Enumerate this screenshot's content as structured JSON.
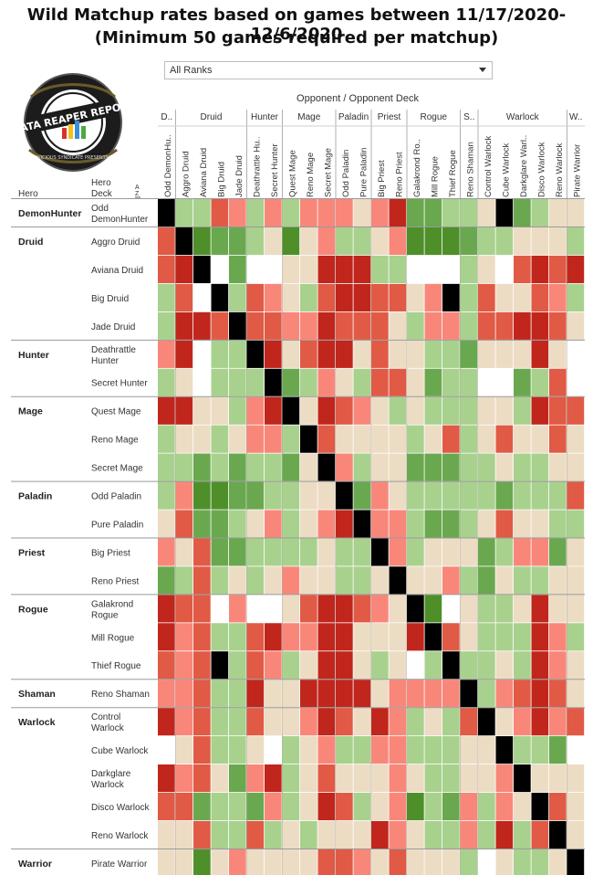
{
  "titles": {
    "line1": "Wild Matchup rates based on games between 11/17/2020-12/6/2020",
    "line2": "(Minimum 50 games required per matchup)"
  },
  "filter": {
    "selected": "All Ranks"
  },
  "logo": {
    "text": "DATA REAPER REPORT",
    "subtext": "VICIOUS SYNDICATE PRESENTS"
  },
  "colors": {
    "strong_fav": "#4f8f2a",
    "fav": "#6aa84f",
    "slight_fav": "#a9d18e",
    "even": "#ecdcc3",
    "slight_unfav": "#f8877a",
    "unfav": "#e05a45",
    "strong_unfav": "#c0261b",
    "mirror": "#000000",
    "no_data": "#ffffff"
  },
  "chart_data": {
    "type": "heatmap",
    "header": {
      "opponent_label": "Opponent",
      "separator": "/",
      "deck_label": "Opponent Deck",
      "hero_label": "Hero",
      "hero_deck_label": "Hero Deck",
      "sort_icon": "A Z"
    },
    "opponent_classes": [
      {
        "name": "D..",
        "count": 1
      },
      {
        "name": "Druid",
        "count": 4
      },
      {
        "name": "Hunter",
        "count": 2
      },
      {
        "name": "Mage",
        "count": 3
      },
      {
        "name": "Paladin",
        "count": 2
      },
      {
        "name": "Priest",
        "count": 2
      },
      {
        "name": "Rogue",
        "count": 3
      },
      {
        "name": "S..",
        "count": 1
      },
      {
        "name": "Warlock",
        "count": 5
      },
      {
        "name": "W..",
        "count": 1
      }
    ],
    "columns": [
      "Odd DemonHu..",
      "Aggro Druid",
      "Aviana Druid",
      "Big Druid",
      "Jade Druid",
      "Deathrattle Hu..",
      "Secret Hunter",
      "Quest Mage",
      "Reno Mage",
      "Secret Mage",
      "Odd Paladin",
      "Pure Paladin",
      "Big Priest",
      "Reno Priest",
      "Galakrond Ro..",
      "Mill Rogue",
      "Thief Rogue",
      "Reno Shaman",
      "Control Warlock",
      "Cube Warlock",
      "Darkglare Warl..",
      "Disco Warlock",
      "Reno Warlock",
      "Pirate Warrior"
    ],
    "hero_classes": [
      {
        "name": "DemonHunter",
        "count": 1
      },
      {
        "name": "Druid",
        "count": 4
      },
      {
        "name": "Hunter",
        "count": 2
      },
      {
        "name": "Mage",
        "count": 3
      },
      {
        "name": "Paladin",
        "count": 2
      },
      {
        "name": "Priest",
        "count": 2
      },
      {
        "name": "Rogue",
        "count": 3
      },
      {
        "name": "Shaman",
        "count": 1
      },
      {
        "name": "Warlock",
        "count": 5
      },
      {
        "name": "Warrior",
        "count": 1
      }
    ],
    "rows": [
      {
        "deck": "Odd\nDemonHunter",
        "cells": [
          8,
          1,
          1,
          -2,
          -1,
          1,
          -1,
          1,
          -1,
          -1,
          -1,
          0,
          -1,
          -3,
          2,
          2,
          1,
          1,
          0,
          8,
          2,
          1,
          0,
          0
        ]
      },
      {
        "deck": "Aggro Druid",
        "cells": [
          -2,
          8,
          3,
          2,
          2,
          1,
          0,
          3,
          0,
          -1,
          1,
          1,
          0,
          -1,
          3,
          3,
          3,
          2,
          1,
          1,
          0,
          0,
          0,
          1
        ]
      },
      {
        "deck": "Aviana Druid",
        "cells": [
          -2,
          -4,
          8,
          9,
          2,
          9,
          9,
          0,
          0,
          -4,
          -4,
          -3,
          1,
          1,
          9,
          9,
          9,
          1,
          0,
          9,
          -2,
          -4,
          -2,
          -4
        ]
      },
      {
        "deck": "Big Druid",
        "cells": [
          1,
          -2,
          9,
          8,
          1,
          -2,
          -1,
          0,
          1,
          -2,
          -4,
          -3,
          -2,
          -2,
          0,
          -1,
          8,
          1,
          -2,
          0,
          0,
          -2,
          -1,
          1
        ]
      },
      {
        "deck": "Jade Druid",
        "cells": [
          1,
          -3,
          -3,
          -2,
          8,
          -2,
          -2,
          -1,
          -1,
          -3,
          -2,
          -2,
          -2,
          0,
          1,
          -1,
          -1,
          1,
          -2,
          -2,
          -3,
          -3,
          -2,
          0
        ]
      },
      {
        "deck": "Deathrattle\nHunter",
        "cells": [
          -1,
          -3,
          9,
          1,
          1,
          8,
          -4,
          0,
          -2,
          -4,
          -4,
          0,
          -2,
          0,
          0,
          1,
          1,
          2,
          0,
          0,
          0,
          -3,
          0,
          9
        ]
      },
      {
        "deck": "Secret Hunter",
        "cells": [
          1,
          0,
          9,
          1,
          1,
          1,
          8,
          2,
          1,
          -1,
          0,
          1,
          -2,
          -2,
          0,
          2,
          1,
          1,
          9,
          9,
          2,
          1,
          -2,
          9
        ]
      },
      {
        "deck": "Quest Mage",
        "cells": [
          -3,
          -4,
          0,
          0,
          1,
          -1,
          -3,
          8,
          0,
          -4,
          -2,
          -1,
          0,
          1,
          0,
          1,
          1,
          1,
          0,
          0,
          1,
          -4,
          -2,
          -2
        ]
      },
      {
        "deck": "Reno Mage",
        "cells": [
          1,
          0,
          0,
          1,
          0,
          -1,
          -1,
          1,
          8,
          -2,
          0,
          0,
          0,
          0,
          1,
          0,
          -2,
          1,
          0,
          -2,
          0,
          0,
          -2,
          0
        ]
      },
      {
        "deck": "Secret Mage",
        "cells": [
          1,
          1,
          2,
          1,
          2,
          1,
          1,
          2,
          0,
          8,
          -1,
          1,
          0,
          0,
          2,
          2,
          2,
          1,
          1,
          0,
          1,
          1,
          0,
          0
        ]
      },
      {
        "deck": "Odd Paladin",
        "cells": [
          1,
          -1,
          3,
          3,
          2,
          2,
          1,
          1,
          0,
          0,
          8,
          2,
          -1,
          0,
          1,
          1,
          1,
          1,
          1,
          2,
          1,
          1,
          1,
          -2
        ]
      },
      {
        "deck": "Pure Paladin",
        "cells": [
          0,
          -2,
          2,
          2,
          1,
          0,
          -1,
          1,
          0,
          -1,
          -3,
          8,
          -1,
          -1,
          1,
          2,
          2,
          1,
          0,
          -2,
          0,
          0,
          1,
          1
        ]
      },
      {
        "deck": "Big Priest",
        "cells": [
          -1,
          0,
          -2,
          2,
          2,
          1,
          1,
          1,
          1,
          0,
          1,
          1,
          8,
          -1,
          1,
          0,
          0,
          0,
          2,
          1,
          -1,
          -1,
          2,
          0
        ]
      },
      {
        "deck": "Reno Priest",
        "cells": [
          2,
          1,
          -2,
          1,
          0,
          1,
          0,
          -1,
          0,
          0,
          1,
          1,
          0,
          8,
          0,
          0,
          -1,
          1,
          2,
          0,
          1,
          1,
          0,
          0
        ]
      },
      {
        "deck": "Galakrond\nRogue",
        "cells": [
          -3,
          -2,
          -2,
          9,
          -1,
          9,
          9,
          0,
          -2,
          -4,
          -4,
          -2,
          -1,
          0,
          8,
          3,
          9,
          0,
          1,
          1,
          0,
          -4,
          0,
          0
        ]
      },
      {
        "deck": "Mill Rogue",
        "cells": [
          -3,
          -1,
          -2,
          1,
          1,
          -2,
          -4,
          -1,
          -1,
          -4,
          -3,
          0,
          0,
          0,
          -4,
          8,
          -2,
          0,
          1,
          1,
          1,
          -3,
          -1,
          1
        ]
      },
      {
        "deck": "Thief Rogue",
        "cells": [
          -2,
          -1,
          -2,
          8,
          1,
          -2,
          -1,
          1,
          0,
          -4,
          -3,
          0,
          1,
          0,
          9,
          1,
          8,
          1,
          1,
          0,
          1,
          -4,
          -1,
          0
        ]
      },
      {
        "deck": "Reno Shaman",
        "cells": [
          -1,
          -1,
          -2,
          1,
          1,
          -4,
          0,
          0,
          -3,
          -4,
          -3,
          -3,
          0,
          -1,
          -1,
          -1,
          -1,
          8,
          1,
          -1,
          -2,
          -3,
          -2,
          0
        ]
      },
      {
        "deck": "Control\nWarlock",
        "cells": [
          -4,
          -1,
          -2,
          1,
          1,
          -2,
          0,
          0,
          -1,
          -4,
          -2,
          0,
          -4,
          -1,
          1,
          0,
          1,
          -2,
          8,
          0,
          -1,
          -4,
          -1,
          -2
        ]
      },
      {
        "deck": "Cube Warlock",
        "cells": [
          9,
          0,
          -2,
          1,
          1,
          0,
          9,
          1,
          0,
          -1,
          1,
          1,
          -1,
          -1,
          1,
          1,
          1,
          0,
          0,
          8,
          1,
          1,
          2,
          9
        ]
      },
      {
        "deck": "Darkglare\nWarlock",
        "cells": [
          -3,
          -1,
          -2,
          0,
          2,
          -1,
          -3,
          1,
          0,
          -2,
          0,
          0,
          0,
          -1,
          0,
          1,
          1,
          0,
          0,
          -1,
          8,
          0,
          0,
          0
        ]
      },
      {
        "deck": "Disco Warlock",
        "cells": [
          -2,
          -2,
          2,
          1,
          1,
          2,
          -1,
          1,
          0,
          -3,
          -2,
          1,
          0,
          -1,
          3,
          1,
          2,
          -1,
          1,
          -1,
          0,
          8,
          -2,
          0
        ]
      },
      {
        "deck": "Reno Warlock",
        "cells": [
          0,
          0,
          -2,
          1,
          1,
          -2,
          1,
          0,
          1,
          0,
          0,
          0,
          -3,
          -1,
          0,
          1,
          1,
          -1,
          1,
          -3,
          1,
          -2,
          8,
          0
        ]
      },
      {
        "deck": "Pirate Warrior",
        "cells": [
          0,
          0,
          3,
          0,
          -1,
          0,
          0,
          0,
          0,
          -2,
          -2,
          -1,
          0,
          -2,
          0,
          0,
          0,
          1,
          9,
          0,
          1,
          1,
          0,
          8
        ]
      }
    ]
  }
}
